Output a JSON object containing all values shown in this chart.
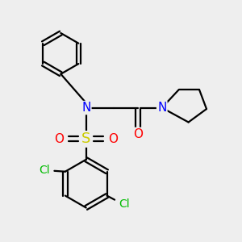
{
  "bg_color": "#eeeeee",
  "atom_colors": {
    "C": "#000000",
    "N": "#0000ff",
    "O": "#ff0000",
    "S": "#cccc00",
    "Cl": "#00bb00",
    "H": "#000000"
  },
  "bond_color": "#000000",
  "bond_width": 1.6,
  "font_size_atom": 9.5
}
